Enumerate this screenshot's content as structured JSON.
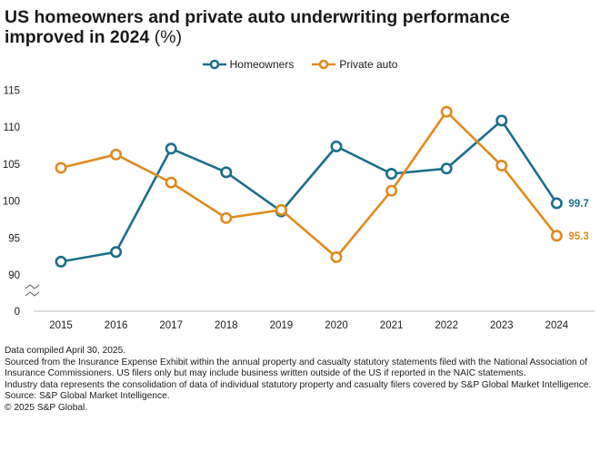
{
  "header": {
    "title": "US homeowners and private auto underwriting performance improved in 2024",
    "title_unit": "(%)"
  },
  "chart_data": {
    "type": "line",
    "title": "US homeowners and private auto underwriting performance improved in 2024 (%)",
    "categories": [
      "2015",
      "2016",
      "2017",
      "2018",
      "2019",
      "2020",
      "2021",
      "2022",
      "2023",
      "2024"
    ],
    "y_ticks": [
      "115",
      "110",
      "105",
      "100",
      "95",
      "90",
      "0"
    ],
    "ylim": [
      88,
      115
    ],
    "y_axis_break": true,
    "grid": false,
    "legend_position": "top-center",
    "series": [
      {
        "name": "Homeowners",
        "color": "#1b6f8a",
        "values": [
          91.8,
          93.1,
          107.1,
          103.9,
          98.6,
          107.4,
          103.7,
          104.4,
          110.9,
          99.7
        ],
        "end_label": "99.7"
      },
      {
        "name": "Private auto",
        "color": "#e08a1e",
        "values": [
          104.5,
          106.3,
          102.5,
          97.7,
          98.8,
          92.4,
          101.4,
          112.1,
          104.8,
          95.3
        ],
        "end_label": "95.3"
      }
    ]
  },
  "notes": [
    "Data compiled April 30, 2025.",
    "Sourced from the Insurance Expense Exhibit within the annual property and casualty statutory statements filed with the National Association of Insurance Commissioners. US filers only but may include business written outside of the US if reported in the NAIC statements.",
    "Industry data represents the consolidation of data of individual statutory property and casualty filers covered by S&P Global Market Intelligence.",
    "Source: S&P Global Market Intelligence.",
    "© 2025 S&P Global."
  ]
}
